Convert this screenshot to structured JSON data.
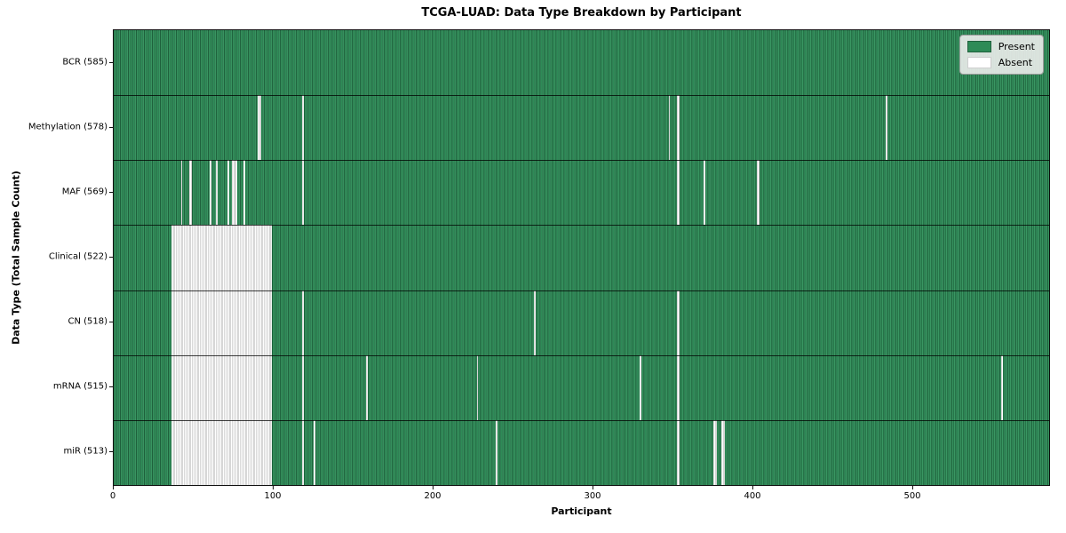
{
  "chart_data": {
    "type": "heatmap",
    "title": "TCGA-LUAD: Data Type Breakdown by Participant",
    "xlabel": "Participant",
    "ylabel": "Data Type (Total Sample Count)",
    "x_ticks": [
      0,
      100,
      200,
      300,
      400,
      500
    ],
    "x_max": 585,
    "grid": false,
    "legend": {
      "position": "upper right",
      "entries": [
        {
          "label": "Present",
          "color": "#2e8b57"
        },
        {
          "label": "Absent",
          "color": "#ffffff"
        }
      ]
    },
    "rows": [
      {
        "label": "BCR (585)",
        "data_type": "BCR",
        "sample_count": 585,
        "absent_runs": []
      },
      {
        "label": "Methylation (578)",
        "data_type": "Methylation",
        "sample_count": 578,
        "absent_runs": [
          [
            90,
            2
          ],
          [
            118,
            1
          ],
          [
            347,
            1
          ],
          [
            352,
            2
          ],
          [
            483,
            1
          ]
        ]
      },
      {
        "label": "MAF (569)",
        "data_type": "MAF",
        "sample_count": 569,
        "absent_runs": [
          [
            42,
            1
          ],
          [
            47,
            2
          ],
          [
            60,
            1
          ],
          [
            64,
            1
          ],
          [
            71,
            1
          ],
          [
            74,
            2
          ],
          [
            76,
            1
          ],
          [
            81,
            1
          ],
          [
            118,
            1
          ],
          [
            352,
            2
          ],
          [
            369,
            1
          ],
          [
            402,
            2
          ]
        ]
      },
      {
        "label": "Clinical (522)",
        "data_type": "Clinical",
        "sample_count": 522,
        "absent_runs": [
          [
            36,
            63
          ]
        ]
      },
      {
        "label": "CN (518)",
        "data_type": "CN",
        "sample_count": 518,
        "absent_runs": [
          [
            36,
            63
          ],
          [
            118,
            1
          ],
          [
            263,
            1
          ],
          [
            352,
            2
          ]
        ]
      },
      {
        "label": "mRNA (515)",
        "data_type": "mRNA",
        "sample_count": 515,
        "absent_runs": [
          [
            36,
            63
          ],
          [
            118,
            1
          ],
          [
            158,
            1
          ],
          [
            227,
            1
          ],
          [
            329,
            1
          ],
          [
            352,
            2
          ],
          [
            555,
            1
          ]
        ]
      },
      {
        "label": "miR (513)",
        "data_type": "miR",
        "sample_count": 513,
        "absent_runs": [
          [
            36,
            63
          ],
          [
            118,
            1
          ],
          [
            125,
            1
          ],
          [
            239,
            1
          ],
          [
            352,
            2
          ],
          [
            375,
            2
          ],
          [
            380,
            2
          ]
        ]
      }
    ],
    "colors": {
      "present": "#2e8b57",
      "absent": "#ffffff",
      "frame": "#111111"
    }
  }
}
